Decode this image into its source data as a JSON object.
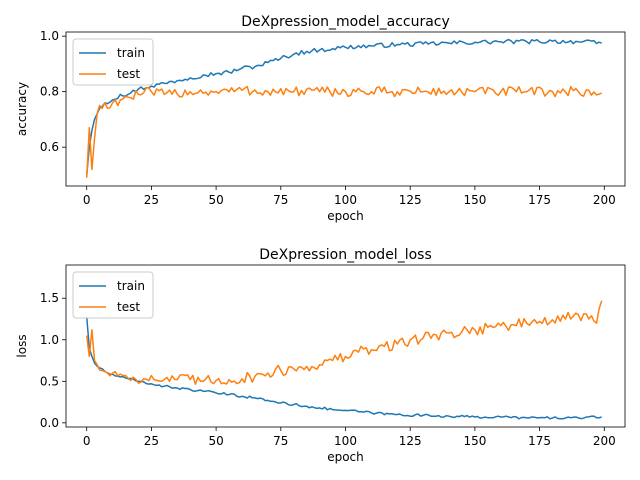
{
  "chart_data": [
    {
      "type": "line",
      "title": "DeXpression_model_accuracy",
      "xlabel": "epoch",
      "ylabel": "accuracy",
      "xlim": [
        -8,
        208
      ],
      "ylim": [
        0.46,
        1.015
      ],
      "xticks": [
        0,
        25,
        50,
        75,
        100,
        125,
        150,
        175,
        200
      ],
      "yticks": [
        0.6,
        0.8,
        1.0
      ],
      "ytick_labels": [
        "0.6",
        "0.8",
        "1.0"
      ],
      "grid": false,
      "legend": "upper-left",
      "series": [
        {
          "name": "train",
          "color": "#1f77b4",
          "points": [
            [
              0,
              0.5
            ],
            [
              1,
              0.6
            ],
            [
              2,
              0.66
            ],
            [
              3,
              0.7
            ],
            [
              4,
              0.72
            ],
            [
              5,
              0.74
            ],
            [
              7,
              0.76
            ],
            [
              10,
              0.77
            ],
            [
              13,
              0.79
            ],
            [
              16,
              0.79
            ],
            [
              20,
              0.81
            ],
            [
              25,
              0.82
            ],
            [
              30,
              0.83
            ],
            [
              35,
              0.84
            ],
            [
              40,
              0.85
            ],
            [
              45,
              0.86
            ],
            [
              50,
              0.865
            ],
            [
              55,
              0.87
            ],
            [
              60,
              0.885
            ],
            [
              65,
              0.89
            ],
            [
              70,
              0.905
            ],
            [
              75,
              0.92
            ],
            [
              80,
              0.935
            ],
            [
              85,
              0.945
            ],
            [
              90,
              0.95
            ],
            [
              95,
              0.955
            ],
            [
              100,
              0.96
            ],
            [
              110,
              0.965
            ],
            [
              120,
              0.97
            ],
            [
              130,
              0.972
            ],
            [
              140,
              0.975
            ],
            [
              150,
              0.978
            ],
            [
              160,
              0.98
            ],
            [
              170,
              0.98
            ],
            [
              180,
              0.982
            ],
            [
              190,
              0.98
            ],
            [
              199,
              0.975
            ]
          ],
          "noise": 0.008
        },
        {
          "name": "test",
          "color": "#ff7f0e",
          "points": [
            [
              0,
              0.49
            ],
            [
              1,
              0.67
            ],
            [
              2,
              0.52
            ],
            [
              3,
              0.63
            ],
            [
              4,
              0.72
            ],
            [
              5,
              0.75
            ],
            [
              6,
              0.74
            ],
            [
              7,
              0.76
            ],
            [
              8,
              0.74
            ],
            [
              10,
              0.76
            ],
            [
              13,
              0.77
            ],
            [
              16,
              0.78
            ],
            [
              20,
              0.79
            ],
            [
              25,
              0.8
            ],
            [
              30,
              0.79
            ],
            [
              40,
              0.8
            ],
            [
              50,
              0.8
            ],
            [
              60,
              0.805
            ],
            [
              70,
              0.8
            ],
            [
              80,
              0.8
            ],
            [
              90,
              0.8
            ],
            [
              100,
              0.8
            ],
            [
              110,
              0.8
            ],
            [
              120,
              0.8
            ],
            [
              130,
              0.8
            ],
            [
              140,
              0.8
            ],
            [
              150,
              0.8
            ],
            [
              160,
              0.8
            ],
            [
              170,
              0.8
            ],
            [
              180,
              0.8
            ],
            [
              190,
              0.8
            ],
            [
              199,
              0.795
            ]
          ],
          "noise": 0.018
        }
      ]
    },
    {
      "type": "line",
      "title": "DeXpression_model_loss",
      "xlabel": "epoch",
      "ylabel": "loss",
      "xlim": [
        -8,
        208
      ],
      "ylim": [
        -0.05,
        1.9
      ],
      "xticks": [
        0,
        25,
        50,
        75,
        100,
        125,
        150,
        175,
        200
      ],
      "yticks": [
        0.0,
        0.5,
        1.0,
        1.5
      ],
      "ytick_labels": [
        "0.0",
        "0.5",
        "1.0",
        "1.5"
      ],
      "grid": false,
      "legend": "upper-left",
      "series": [
        {
          "name": "train",
          "color": "#1f77b4",
          "points": [
            [
              0,
              1.28
            ],
            [
              1,
              0.9
            ],
            [
              2,
              0.8
            ],
            [
              3,
              0.72
            ],
            [
              5,
              0.66
            ],
            [
              8,
              0.6
            ],
            [
              12,
              0.56
            ],
            [
              16,
              0.53
            ],
            [
              20,
              0.5
            ],
            [
              25,
              0.47
            ],
            [
              30,
              0.44
            ],
            [
              35,
              0.42
            ],
            [
              40,
              0.4
            ],
            [
              45,
              0.38
            ],
            [
              50,
              0.36
            ],
            [
              55,
              0.34
            ],
            [
              60,
              0.32
            ],
            [
              65,
              0.3
            ],
            [
              70,
              0.27
            ],
            [
              75,
              0.24
            ],
            [
              80,
              0.22
            ],
            [
              85,
              0.2
            ],
            [
              90,
              0.18
            ],
            [
              95,
              0.16
            ],
            [
              100,
              0.15
            ],
            [
              110,
              0.12
            ],
            [
              120,
              0.1
            ],
            [
              130,
              0.09
            ],
            [
              140,
              0.08
            ],
            [
              150,
              0.07
            ],
            [
              160,
              0.07
            ],
            [
              170,
              0.06
            ],
            [
              180,
              0.06
            ],
            [
              190,
              0.06
            ],
            [
              199,
              0.07
            ]
          ],
          "noise": 0.015
        },
        {
          "name": "test",
          "color": "#ff7f0e",
          "points": [
            [
              0,
              1.05
            ],
            [
              1,
              0.8
            ],
            [
              2,
              1.12
            ],
            [
              3,
              0.75
            ],
            [
              4,
              0.7
            ],
            [
              6,
              0.63
            ],
            [
              8,
              0.6
            ],
            [
              10,
              0.6
            ],
            [
              14,
              0.57
            ],
            [
              18,
              0.55
            ],
            [
              22,
              0.53
            ],
            [
              26,
              0.52
            ],
            [
              30,
              0.52
            ],
            [
              35,
              0.52
            ],
            [
              40,
              0.52
            ],
            [
              45,
              0.5
            ],
            [
              50,
              0.51
            ],
            [
              55,
              0.52
            ],
            [
              60,
              0.53
            ],
            [
              65,
              0.56
            ],
            [
              70,
              0.6
            ],
            [
              75,
              0.63
            ],
            [
              80,
              0.65
            ],
            [
              85,
              0.68
            ],
            [
              90,
              0.7
            ],
            [
              95,
              0.75
            ],
            [
              100,
              0.8
            ],
            [
              105,
              0.85
            ],
            [
              110,
              0.88
            ],
            [
              115,
              0.92
            ],
            [
              120,
              0.95
            ],
            [
              125,
              1.0
            ],
            [
              130,
              1.02
            ],
            [
              135,
              1.06
            ],
            [
              140,
              1.08
            ],
            [
              145,
              1.1
            ],
            [
              150,
              1.12
            ],
            [
              155,
              1.15
            ],
            [
              160,
              1.17
            ],
            [
              165,
              1.18
            ],
            [
              170,
              1.2
            ],
            [
              175,
              1.22
            ],
            [
              180,
              1.24
            ],
            [
              185,
              1.25
            ],
            [
              190,
              1.3
            ],
            [
              194,
              1.25
            ],
            [
              197,
              1.2
            ],
            [
              199,
              1.47
            ]
          ],
          "noise": 0.07
        }
      ]
    }
  ]
}
